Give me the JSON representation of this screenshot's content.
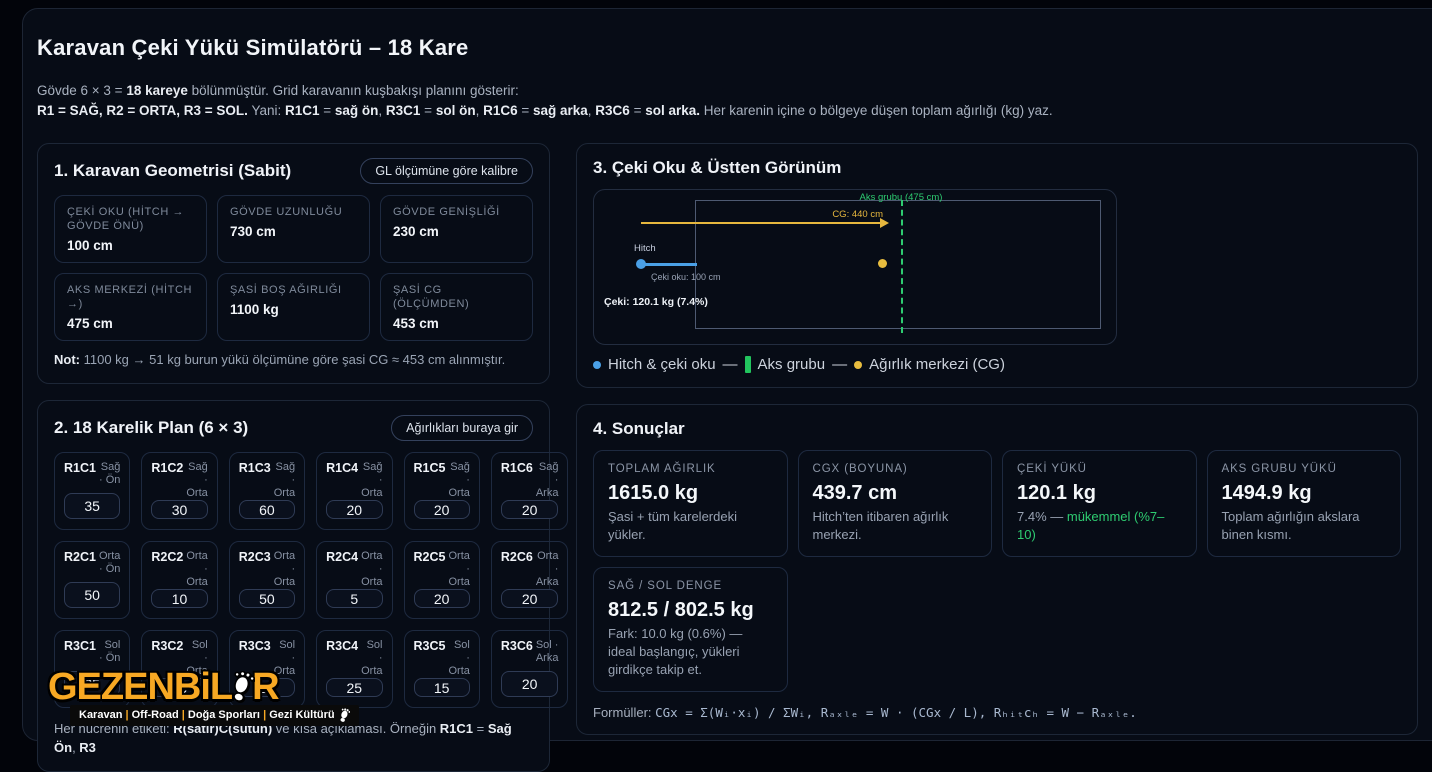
{
  "colors": {
    "accent_green": "#2ecc71",
    "legend_green": "#22c55e",
    "arrow_yellow": "#e6b73e",
    "hitch_blue": "#4aa0e6",
    "logo_orange": "#f7a823"
  },
  "header": {
    "title": "Karavan Çeki Yükü Simülatörü – 18 Kare",
    "intro1": [
      {
        "t": "Gövde 6 × 3 = "
      },
      {
        "t": "18 kareye",
        "b": 1
      },
      {
        "t": " bölünmüştür. Grid karavanın kuşbakışı planını gösterir:"
      }
    ],
    "intro2": [
      {
        "t": "R1 = SAĞ, R2 = ORTA, R3 = SOL.",
        "b": 1
      },
      {
        "t": " Yani: "
      },
      {
        "t": "R1C1",
        "b": 1
      },
      {
        "t": " = "
      },
      {
        "t": "sağ ön",
        "b": 1
      },
      {
        "t": ", "
      },
      {
        "t": "R3C1",
        "b": 1
      },
      {
        "t": " = "
      },
      {
        "t": "sol ön",
        "b": 1
      },
      {
        "t": ", "
      },
      {
        "t": "R1C6",
        "b": 1
      },
      {
        "t": " = "
      },
      {
        "t": "sağ arka",
        "b": 1
      },
      {
        "t": ", "
      },
      {
        "t": "R3C6",
        "b": 1
      },
      {
        "t": " = "
      },
      {
        "t": "sol arka.",
        "b": 1
      },
      {
        "t": " Her karenin içine o bölgeye düşen toplam ağırlığı (kg) yaz."
      }
    ]
  },
  "geometry": {
    "heading": "1. Karavan Geometrisi (Sabit)",
    "calibrate_button": "GL ölçümüne göre kalibre",
    "fields": [
      {
        "label": "ÇEKİ OKU (HİTCH → GÖVDE ÖNÜ)",
        "value": "100 cm"
      },
      {
        "label": "GÖVDE UZUNLUĞU",
        "value": "730 cm"
      },
      {
        "label": "GÖVDE GENİŞLİĞİ",
        "value": "230 cm"
      },
      {
        "label": "AKS MERKEZİ (HİTCH →)",
        "value": "475 cm"
      },
      {
        "label": "ŞASİ BOŞ AĞIRLIĞI",
        "value": "1100 kg"
      },
      {
        "label": "ŞASİ CG (ÖLÇÜMDEN)",
        "value": "453 cm"
      }
    ],
    "note": [
      {
        "t": "Not:",
        "b": 1
      },
      {
        "t": " 1100 kg → 51 kg burun yükü ölçümüne göre şasi CG ≈ 453 cm alınmıştır."
      }
    ]
  },
  "grid": {
    "heading": "2. 18 Karelik Plan (6 × 3)",
    "enter_weights_button": "Ağırlıkları buraya gir",
    "cells": [
      {
        "id": "R1C1",
        "desc": "Sağ · Ön",
        "value": "35"
      },
      {
        "id": "R1C2",
        "desc": "Sağ · Orta",
        "value": "30"
      },
      {
        "id": "R1C3",
        "desc": "Sağ · Orta",
        "value": "60"
      },
      {
        "id": "R1C4",
        "desc": "Sağ · Orta",
        "value": "20"
      },
      {
        "id": "R1C5",
        "desc": "Sağ · Orta",
        "value": "20"
      },
      {
        "id": "R1C6",
        "desc": "Sağ · Arka",
        "value": "20"
      },
      {
        "id": "R2C1",
        "desc": "Orta · Ön",
        "value": "50"
      },
      {
        "id": "R2C2",
        "desc": "Orta · Orta",
        "value": "10"
      },
      {
        "id": "R2C3",
        "desc": "Orta · Orta",
        "value": "50"
      },
      {
        "id": "R2C4",
        "desc": "Orta · Orta",
        "value": "5"
      },
      {
        "id": "R2C5",
        "desc": "Orta · Orta",
        "value": "20"
      },
      {
        "id": "R2C6",
        "desc": "Orta · Arka",
        "value": "20"
      },
      {
        "id": "R3C1",
        "desc": "Sol · Ön",
        "value": "35"
      },
      {
        "id": "R3C2",
        "desc": "Sol · Orta",
        "value": "30"
      },
      {
        "id": "R3C3",
        "desc": "Sol · Orta",
        "value": "50"
      },
      {
        "id": "R3C4",
        "desc": "Sol · Orta",
        "value": "25"
      },
      {
        "id": "R3C5",
        "desc": "Sol · Orta",
        "value": "15"
      },
      {
        "id": "R3C6",
        "desc": "Sol · Arka",
        "value": "20"
      }
    ],
    "footer": [
      {
        "t": "Her hücrenin etiketi: "
      },
      {
        "t": "R(satır)C(sütun)",
        "b": 1
      },
      {
        "t": " ve kısa açıklaması. Örneğin "
      },
      {
        "t": "R1C1",
        "b": 1
      },
      {
        "t": " = "
      },
      {
        "t": "Sağ Ön",
        "b": 1
      },
      {
        "t": ", "
      },
      {
        "t": "R3",
        "b": 1
      }
    ]
  },
  "diagram": {
    "heading": "3. Çeki Oku & Üstten Görünüm",
    "axle_label": "Aks grubu (475 cm)",
    "cg_label": "CG: 440 cm",
    "hitch_label": "Hitch",
    "drawbar_label": "Çeki oku: 100 cm",
    "tongue_label": "Çeki: 120.1 kg (7.4%)",
    "legend": {
      "item1": "Hitch & çeki oku",
      "item2": "Aks grubu",
      "item3": "Ağırlık merkezi (CG)",
      "separator": "—"
    }
  },
  "results": {
    "heading": "4. Sonuçlar",
    "cards": [
      {
        "label": "TOPLAM AĞIRLIK",
        "value": "1615.0 kg",
        "desc": [
          {
            "t": "Şasi + tüm karelerdeki yükler."
          }
        ]
      },
      {
        "label": "CGX (BOYUNA)",
        "value": "439.7 cm",
        "desc": [
          {
            "t": "Hitch’ten itibaren ağırlık merkezi."
          }
        ]
      },
      {
        "label": "ÇEKİ YÜKÜ",
        "value": "120.1 kg",
        "desc": [
          {
            "t": "7.4% — "
          },
          {
            "t": "mükemmel (%7–10)",
            "c": "#2ecc71"
          }
        ]
      },
      {
        "label": "AKS GRUBU YÜKÜ",
        "value": "1494.9 kg",
        "desc": [
          {
            "t": "Toplam ağırlığın akslara binen kısmı."
          }
        ]
      },
      {
        "label": "SAĞ / SOL DENGE",
        "value": "812.5 / 802.5 kg",
        "desc": [
          {
            "t": "Fark: 10.0 kg (0.6%) — ideal başlangıç, yükleri girdikçe takip et."
          }
        ]
      }
    ],
    "formula_label": "Formüller: ",
    "formula": "CGx = Σ(Wᵢ·xᵢ) / ΣWᵢ, Rₐₓₗₑ = W · (CGx / L), Rₕᵢₜcₕ = W − Rₐₓₗₑ."
  },
  "watermark": {
    "brand_prefix": "GEZENBiL",
    "brand_suffix": "R",
    "tagline": [
      {
        "t": "Karavan "
      },
      {
        "t": "|",
        "c": "#f7a823"
      },
      {
        "t": " Off-Road "
      },
      {
        "t": "|",
        "c": "#f7a823"
      },
      {
        "t": " Doğa Sporları "
      },
      {
        "t": "|",
        "c": "#f7a823"
      },
      {
        "t": " Gezi Kültürü"
      }
    ]
  }
}
